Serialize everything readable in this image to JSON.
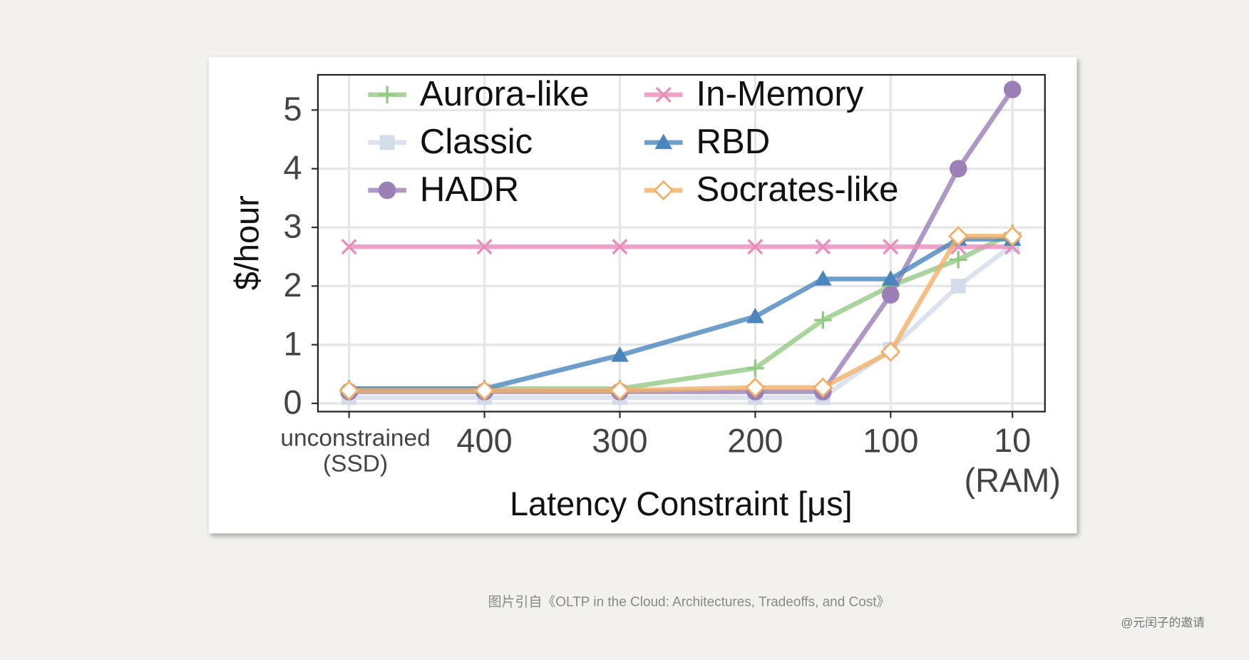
{
  "chart_data": {
    "type": "line",
    "x_label": "Latency Constraint [μs]",
    "y_label": "$/hour",
    "x": [
      500,
      400,
      300,
      200,
      150,
      100,
      50,
      10
    ],
    "xlim": [
      523,
      -14
    ],
    "xticks": [
      {
        "value": 500,
        "label": "unconstrained\n(SSD)"
      },
      400,
      300,
      200,
      100,
      {
        "value": 10,
        "label": "10\n(RAM)"
      }
    ],
    "ylim": [
      -0.14,
      5.6
    ],
    "yticks": [
      0,
      1,
      2,
      3,
      4,
      5
    ],
    "grid": true,
    "legend": "top",
    "series": [
      {
        "name": "Aurora-like",
        "color": "#93c985",
        "marker": "plus",
        "values": [
          0.25,
          0.25,
          0.25,
          0.6,
          1.42,
          2.0,
          2.45,
          2.9
        ]
      },
      {
        "name": "Classic",
        "color": "#d3dce8",
        "marker": "square",
        "values": [
          0.1,
          0.1,
          0.1,
          0.1,
          0.1,
          0.92,
          2.0,
          2.7
        ]
      },
      {
        "name": "HADR",
        "color": "#9a80b6",
        "marker": "circle",
        "values": [
          0.2,
          0.2,
          0.2,
          0.2,
          0.2,
          1.85,
          4.0,
          5.35
        ]
      },
      {
        "name": "In-Memory",
        "color": "#e88dba",
        "marker": "x",
        "values": [
          2.67,
          2.67,
          2.67,
          2.67,
          2.67,
          2.67,
          2.67,
          2.67
        ]
      },
      {
        "name": "RBD",
        "color": "#4a86bd",
        "marker": "triangle",
        "values": [
          0.25,
          0.25,
          0.82,
          1.48,
          2.12,
          2.12,
          2.8,
          2.8
        ]
      },
      {
        "name": "Socrates-like",
        "color": "#f1b06a",
        "marker": "diamond",
        "values": [
          0.22,
          0.22,
          0.22,
          0.27,
          0.27,
          0.88,
          2.85,
          2.85
        ]
      }
    ]
  },
  "caption": "图片引自《OLTP in the Cloud: Architectures, Tradeoffs, and Cost》",
  "watermark": "@元闰子的邀请"
}
